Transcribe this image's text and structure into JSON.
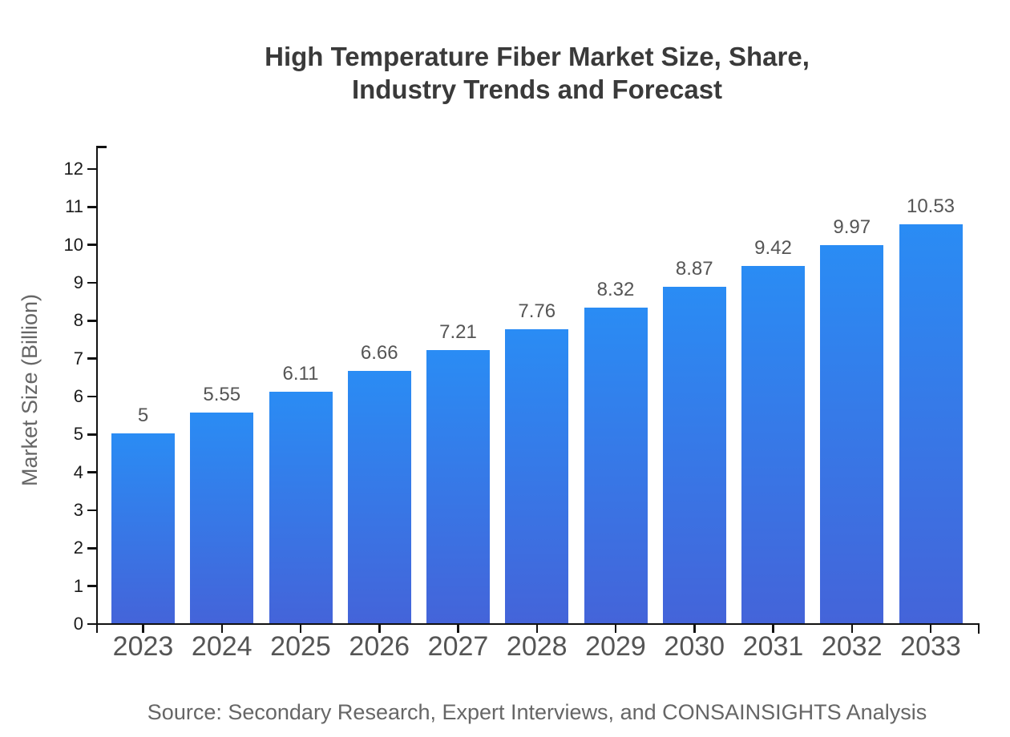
{
  "title": {
    "line1": "High Temperature Fiber Market Size, Share,",
    "line2": "Industry Trends and Forecast"
  },
  "source": "Source: Secondary Research, Expert Interviews, and CONSAINSIGHTS Analysis",
  "chart_data": {
    "type": "bar",
    "title": "High Temperature Fiber Market Size, Share, Industry Trends and Forecast",
    "categories": [
      "2023",
      "2024",
      "2025",
      "2026",
      "2027",
      "2028",
      "2029",
      "2030",
      "2031",
      "2032",
      "2033"
    ],
    "values": [
      5,
      5.55,
      6.11,
      6.66,
      7.21,
      7.76,
      8.32,
      8.87,
      9.42,
      9.97,
      10.53
    ],
    "value_labels": [
      "5",
      "5.55",
      "6.11",
      "6.66",
      "7.21",
      "7.76",
      "8.32",
      "8.87",
      "9.42",
      "9.97",
      "10.53"
    ],
    "xlabel": "",
    "ylabel": "Market Size (Billion)",
    "ylim": [
      0,
      12
    ],
    "ytick_step": 1,
    "ytick_labels": [
      "0",
      "1",
      "2",
      "3",
      "4",
      "5",
      "6",
      "7",
      "8",
      "9",
      "10",
      "11",
      "12"
    ],
    "grid": false,
    "legend_position": "none",
    "bar_gradient_top": "#2A8CF4",
    "bar_gradient_bottom": "#4464D9",
    "axis_color": "#111111",
    "label_color": "#555555",
    "tick_label_color": "#1b1b1b"
  }
}
